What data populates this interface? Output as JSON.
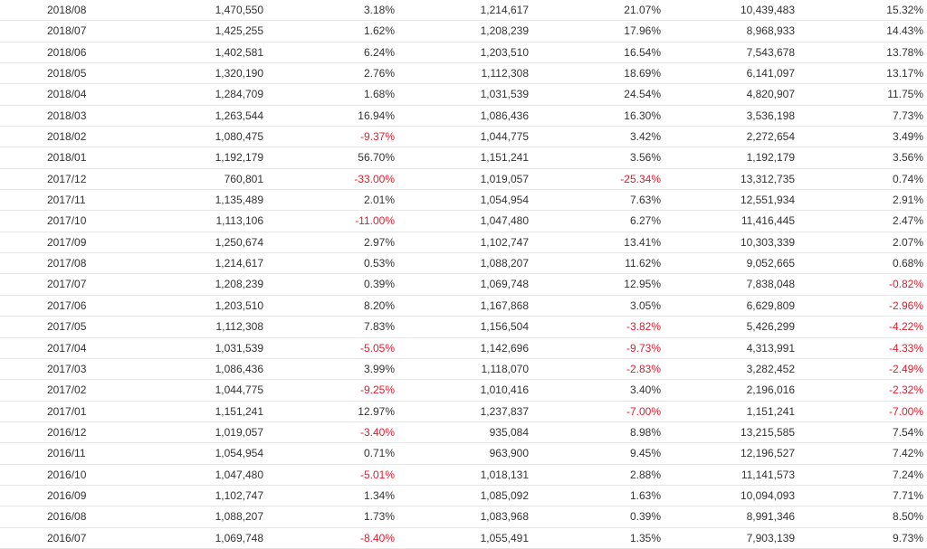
{
  "table": {
    "colors": {
      "negative": "#e8192c",
      "text": "#333333",
      "divider": "#e6e6e6"
    },
    "rows": [
      [
        "2018/08",
        "1,470,550",
        "3.18%",
        "1,214,617",
        "21.07%",
        "10,439,483",
        "15.32%"
      ],
      [
        "2018/07",
        "1,425,255",
        "1.62%",
        "1,208,239",
        "17.96%",
        "8,968,933",
        "14.43%"
      ],
      [
        "2018/06",
        "1,402,581",
        "6.24%",
        "1,203,510",
        "16.54%",
        "7,543,678",
        "13.78%"
      ],
      [
        "2018/05",
        "1,320,190",
        "2.76%",
        "1,112,308",
        "18.69%",
        "6,141,097",
        "13.17%"
      ],
      [
        "2018/04",
        "1,284,709",
        "1.68%",
        "1,031,539",
        "24.54%",
        "4,820,907",
        "11.75%"
      ],
      [
        "2018/03",
        "1,263,544",
        "16.94%",
        "1,086,436",
        "16.30%",
        "3,536,198",
        "7.73%"
      ],
      [
        "2018/02",
        "1,080,475",
        "-9.37%",
        "1,044,775",
        "3.42%",
        "2,272,654",
        "3.49%"
      ],
      [
        "2018/01",
        "1,192,179",
        "56.70%",
        "1,151,241",
        "3.56%",
        "1,192,179",
        "3.56%"
      ],
      [
        "2017/12",
        "760,801",
        "-33.00%",
        "1,019,057",
        "-25.34%",
        "13,312,735",
        "0.74%"
      ],
      [
        "2017/11",
        "1,135,489",
        "2.01%",
        "1,054,954",
        "7.63%",
        "12,551,934",
        "2.91%"
      ],
      [
        "2017/10",
        "1,113,106",
        "-11.00%",
        "1,047,480",
        "6.27%",
        "11,416,445",
        "2.47%"
      ],
      [
        "2017/09",
        "1,250,674",
        "2.97%",
        "1,102,747",
        "13.41%",
        "10,303,339",
        "2.07%"
      ],
      [
        "2017/08",
        "1,214,617",
        "0.53%",
        "1,088,207",
        "11.62%",
        "9,052,665",
        "0.68%"
      ],
      [
        "2017/07",
        "1,208,239",
        "0.39%",
        "1,069,748",
        "12.95%",
        "7,838,048",
        "-0.82%"
      ],
      [
        "2017/06",
        "1,203,510",
        "8.20%",
        "1,167,868",
        "3.05%",
        "6,629,809",
        "-2.96%"
      ],
      [
        "2017/05",
        "1,112,308",
        "7.83%",
        "1,156,504",
        "-3.82%",
        "5,426,299",
        "-4.22%"
      ],
      [
        "2017/04",
        "1,031,539",
        "-5.05%",
        "1,142,696",
        "-9.73%",
        "4,313,991",
        "-4.33%"
      ],
      [
        "2017/03",
        "1,086,436",
        "3.99%",
        "1,118,070",
        "-2.83%",
        "3,282,452",
        "-2.49%"
      ],
      [
        "2017/02",
        "1,044,775",
        "-9.25%",
        "1,010,416",
        "3.40%",
        "2,196,016",
        "-2.32%"
      ],
      [
        "2017/01",
        "1,151,241",
        "12.97%",
        "1,237,837",
        "-7.00%",
        "1,151,241",
        "-7.00%"
      ],
      [
        "2016/12",
        "1,019,057",
        "-3.40%",
        "935,084",
        "8.98%",
        "13,215,585",
        "7.54%"
      ],
      [
        "2016/11",
        "1,054,954",
        "0.71%",
        "963,900",
        "9.45%",
        "12,196,527",
        "7.42%"
      ],
      [
        "2016/10",
        "1,047,480",
        "-5.01%",
        "1,018,131",
        "2.88%",
        "11,141,573",
        "7.24%"
      ],
      [
        "2016/09",
        "1,102,747",
        "1.34%",
        "1,085,092",
        "1.63%",
        "10,094,093",
        "7.71%"
      ],
      [
        "2016/08",
        "1,088,207",
        "1.73%",
        "1,083,968",
        "0.39%",
        "8,991,346",
        "8.50%"
      ],
      [
        "2016/07",
        "1,069,748",
        "-8.40%",
        "1,055,491",
        "1.35%",
        "7,903,139",
        "9.73%"
      ]
    ]
  }
}
